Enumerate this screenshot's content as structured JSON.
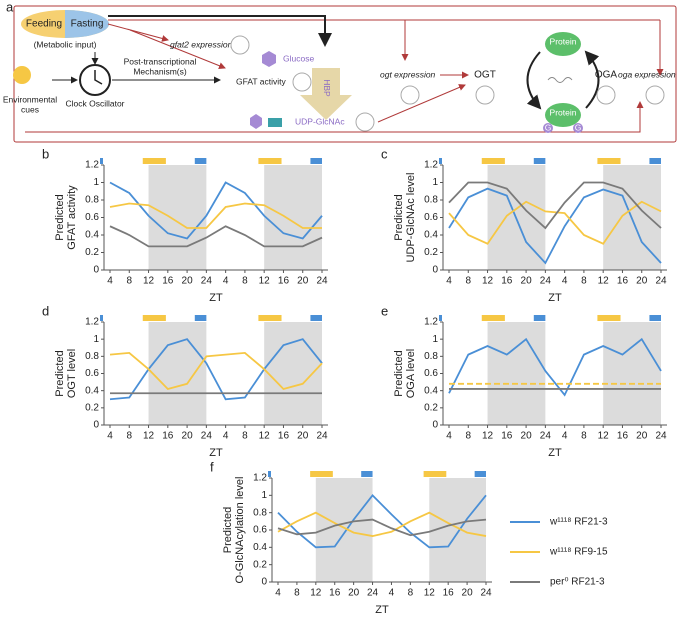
{
  "diagram": {
    "panel": "a",
    "feeding": "Feeding",
    "fasting": "Fasting",
    "metabolic": "(Metabolic input)",
    "gfat2": "gfat2 expression",
    "post1": "Post-transcriptional",
    "post2": "Mechanism(s)",
    "gfat_activity": "GFAT activity",
    "glucose": "Glucose",
    "hbp": "HBP",
    "udp": "UDP-GlcNAc",
    "env1": "Environmental",
    "env2": "cues",
    "clock": "Clock Oscillator",
    "ogt_expr": "ogt expression",
    "ogt": "OGT",
    "protein": "Protein",
    "g": "G",
    "oga": "OGA",
    "oga_expr": "oga expression"
  },
  "chart_data": [
    {
      "type": "line",
      "panel": "b",
      "ylabel": [
        "Predicted",
        "GFAT activity"
      ],
      "xlabel": "ZT",
      "categories": [
        "4",
        "8",
        "12",
        "16",
        "20",
        "24",
        "4",
        "8",
        "12",
        "16",
        "20",
        "24"
      ],
      "ylim": [
        0,
        1.2
      ],
      "yticks": [
        0,
        0.2,
        0.4,
        0.6,
        0.8,
        1,
        1.2
      ],
      "series": [
        {
          "color": "#4a8fd6",
          "values": [
            1.0,
            0.88,
            0.62,
            0.42,
            0.36,
            0.62,
            1.0,
            0.88,
            0.62,
            0.42,
            0.36,
            0.62
          ]
        },
        {
          "color": "#f6c744",
          "values": [
            0.72,
            0.76,
            0.74,
            0.62,
            0.48,
            0.48,
            0.72,
            0.76,
            0.74,
            0.62,
            0.48,
            0.48
          ]
        },
        {
          "color": "#7a7a7a",
          "values": [
            0.5,
            0.4,
            0.27,
            0.27,
            0.27,
            0.37,
            0.5,
            0.4,
            0.27,
            0.27,
            0.27,
            0.37
          ]
        }
      ]
    },
    {
      "type": "line",
      "panel": "c",
      "ylabel": [
        "Predicted",
        "UDP-GlcNAc level"
      ],
      "xlabel": "ZT",
      "categories": [
        "4",
        "8",
        "12",
        "16",
        "20",
        "24",
        "4",
        "8",
        "12",
        "16",
        "20",
        "24"
      ],
      "ylim": [
        0,
        1.2
      ],
      "yticks": [
        0,
        0.2,
        0.4,
        0.6,
        0.8,
        1,
        1.2
      ],
      "series": [
        {
          "color": "#4a8fd6",
          "values": [
            0.48,
            0.83,
            0.93,
            0.85,
            0.32,
            0.08,
            0.5,
            0.83,
            0.92,
            0.85,
            0.32,
            0.08
          ]
        },
        {
          "color": "#f6c744",
          "values": [
            0.65,
            0.4,
            0.3,
            0.62,
            0.78,
            0.67,
            0.65,
            0.4,
            0.3,
            0.62,
            0.78,
            0.67
          ]
        },
        {
          "color": "#7a7a7a",
          "values": [
            0.77,
            1.0,
            1.0,
            0.93,
            0.68,
            0.48,
            0.77,
            1.0,
            1.0,
            0.93,
            0.68,
            0.48
          ]
        }
      ]
    },
    {
      "type": "line",
      "panel": "d",
      "ylabel": [
        "Predicted",
        "OGT level"
      ],
      "xlabel": "ZT",
      "categories": [
        "4",
        "8",
        "12",
        "16",
        "20",
        "24",
        "4",
        "8",
        "12",
        "16",
        "20",
        "24"
      ],
      "ylim": [
        0,
        1.2
      ],
      "yticks": [
        0,
        0.2,
        0.4,
        0.6,
        0.8,
        1,
        1.2
      ],
      "series": [
        {
          "color": "#4a8fd6",
          "values": [
            0.3,
            0.32,
            0.65,
            0.93,
            1.0,
            0.72,
            0.3,
            0.32,
            0.65,
            0.93,
            1.0,
            0.72
          ]
        },
        {
          "color": "#f6c744",
          "values": [
            0.82,
            0.84,
            0.65,
            0.42,
            0.48,
            0.8,
            0.82,
            0.84,
            0.65,
            0.42,
            0.48,
            0.72
          ]
        },
        {
          "color": "#7a7a7a",
          "values": [
            0.37,
            0.37,
            0.37,
            0.37,
            0.37,
            0.37,
            0.37,
            0.37,
            0.37,
            0.37,
            0.37,
            0.37
          ]
        }
      ]
    },
    {
      "type": "line",
      "panel": "e",
      "ylabel": [
        "Predicted",
        "OGA level"
      ],
      "xlabel": "ZT",
      "categories": [
        "4",
        "8",
        "12",
        "16",
        "20",
        "24",
        "4",
        "8",
        "12",
        "16",
        "20",
        "24"
      ],
      "ylim": [
        0,
        1.2
      ],
      "yticks": [
        0,
        0.2,
        0.4,
        0.6,
        0.8,
        1,
        1.2
      ],
      "series": [
        {
          "color": "#4a8fd6",
          "values": [
            0.37,
            0.82,
            0.92,
            0.82,
            1.0,
            0.63,
            0.35,
            0.82,
            0.92,
            0.82,
            1.0,
            0.63
          ]
        },
        {
          "color": "#f6c744",
          "dashed": true,
          "values": [
            0.48,
            0.48,
            0.48,
            0.48,
            0.48,
            0.48,
            0.48,
            0.48,
            0.48,
            0.48,
            0.48,
            0.48
          ]
        },
        {
          "color": "#7a7a7a",
          "values": [
            0.42,
            0.42,
            0.42,
            0.42,
            0.42,
            0.42,
            0.42,
            0.42,
            0.42,
            0.42,
            0.42,
            0.42
          ]
        }
      ]
    },
    {
      "type": "line",
      "panel": "f",
      "ylabel": [
        "Predicted",
        "O-GlcNAcylation level"
      ],
      "xlabel": "ZT",
      "legend": "right",
      "categories": [
        "4",
        "8",
        "12",
        "16",
        "20",
        "24",
        "4",
        "8",
        "12",
        "16",
        "20",
        "24"
      ],
      "ylim": [
        0,
        1.2
      ],
      "yticks": [
        0,
        0.2,
        0.4,
        0.6,
        0.8,
        1,
        1.2
      ],
      "series": [
        {
          "name": "w¹¹¹⁸ RF21-3",
          "color": "#4a8fd6",
          "values": [
            0.8,
            0.58,
            0.4,
            0.41,
            0.72,
            1.0,
            0.78,
            0.57,
            0.4,
            0.41,
            0.73,
            1.0
          ]
        },
        {
          "name": "w¹¹¹⁸ RF9-15",
          "color": "#f6c744",
          "values": [
            0.58,
            0.7,
            0.8,
            0.68,
            0.57,
            0.53,
            0.58,
            0.7,
            0.8,
            0.68,
            0.57,
            0.53
          ]
        },
        {
          "name": "per⁰ RF21-3",
          "color": "#7a7a7a",
          "values": [
            0.62,
            0.55,
            0.57,
            0.65,
            0.7,
            0.72,
            0.62,
            0.54,
            0.58,
            0.65,
            0.7,
            0.72
          ]
        }
      ]
    }
  ]
}
